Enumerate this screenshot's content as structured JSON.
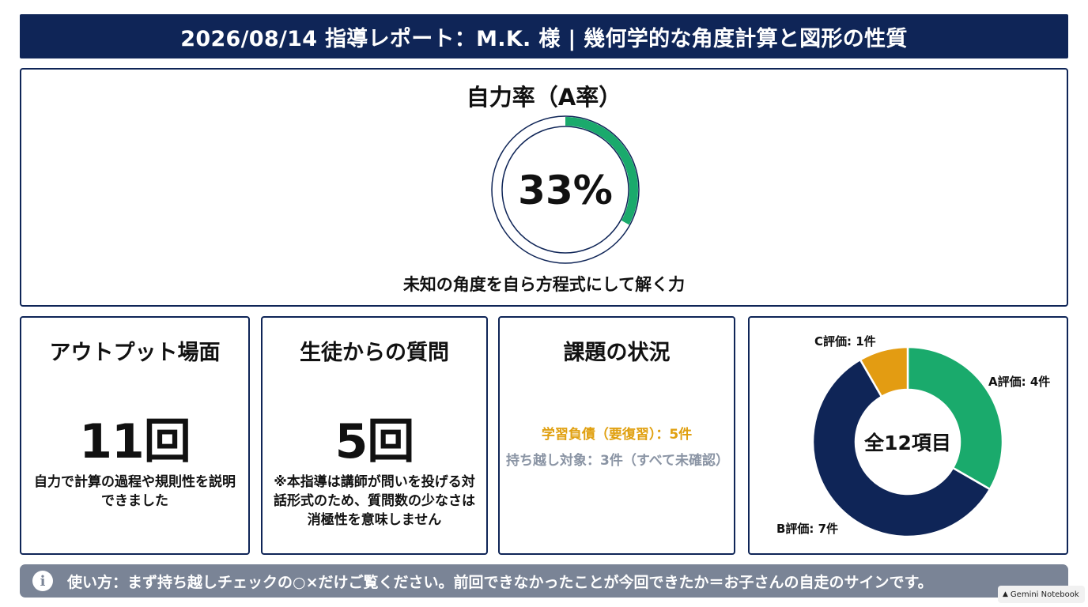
{
  "header": {
    "title": "2026/08/14 指導レポート：M.K. 様 | 幾何学的な角度計算と図形の性質"
  },
  "self_rate": {
    "title": "自力率（A率）",
    "value_label": "33%",
    "fraction": 0.33,
    "caption": "未知の角度を自ら方程式にして解く力",
    "color": "#1aaa6c"
  },
  "output_card": {
    "title": "アウトプット場面",
    "value": "11回",
    "description": "自力で計算の過程や規則性を説明できました"
  },
  "question_card": {
    "title": "生徒からの質問",
    "value": "5回",
    "description": "※本指導は講師が問いを投げる対話形式のため、質問数の少なさは消極性を意味しません"
  },
  "assignment_card": {
    "title": "課題の状況",
    "debt": "学習負債（要復習）：5件",
    "carryover": "持ち越し対象：3件（すべて未確認）"
  },
  "chart_data": {
    "type": "pie",
    "center_label": "全12項目",
    "categories": [
      "A評価",
      "B評価",
      "C評価"
    ],
    "values": [
      4,
      7,
      1
    ],
    "labels": [
      "A評価: 4件",
      "B評価: 7件",
      "C評価: 1件"
    ],
    "colors": [
      "#1aaa6c",
      "#0f2557",
      "#e39c12"
    ]
  },
  "footer": {
    "icon": "info-icon",
    "text": "使い方：まず持ち越しチェックの○×だけご覧ください。前回できなかったことが今回できたか＝お子さんの自走のサインです。"
  },
  "watermark": {
    "icon": "gemini-icon",
    "text": "Gemini Notebook"
  },
  "colors": {
    "navy": "#0f2557",
    "green": "#1aaa6c",
    "orange": "#e39c12",
    "gray": "#7a8496"
  }
}
